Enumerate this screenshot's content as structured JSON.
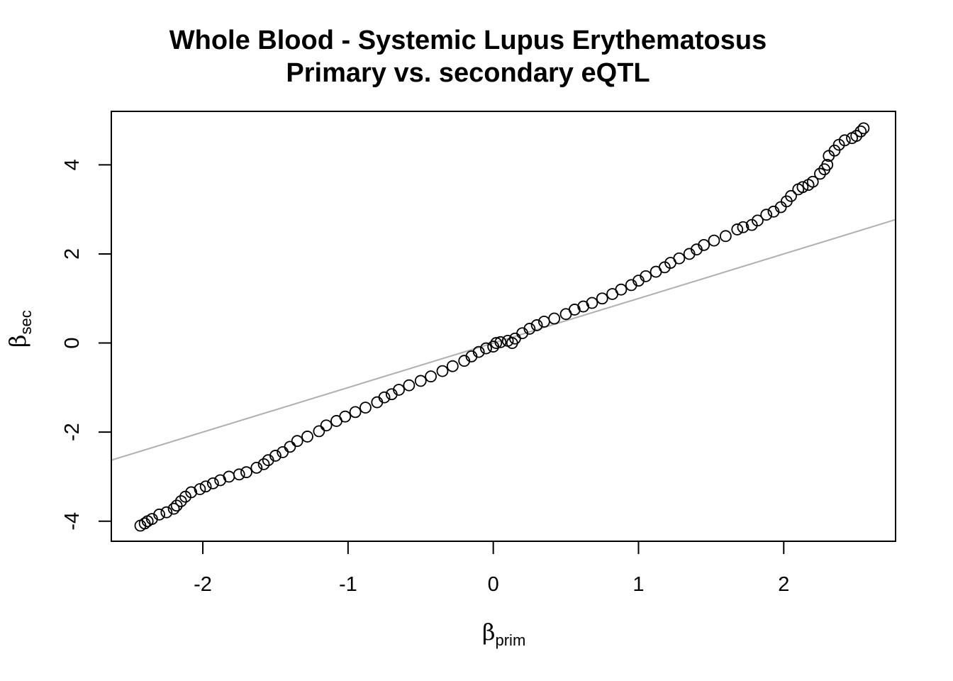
{
  "chart_data": {
    "type": "scatter",
    "title": "Whole Blood - Systemic Lupus Erythematosus",
    "subtitle": "Primary vs. secondary eQTL",
    "xlabel": {
      "symbol": "β",
      "subscript": "prim"
    },
    "ylabel": {
      "symbol": "β",
      "subscript": "sec"
    },
    "xlim": [
      -2.63,
      2.77
    ],
    "ylim": [
      -4.45,
      5.2
    ],
    "xticks": [
      "-2",
      "-1",
      "0",
      "1",
      "2"
    ],
    "yticks": [
      "-4",
      "-2",
      "0",
      "2",
      "4"
    ],
    "grid": false,
    "marker": "open-circle",
    "series": [
      {
        "points": [
          [
            -2.43,
            -4.1
          ],
          [
            -2.4,
            -4.05
          ],
          [
            -2.38,
            -4.0
          ],
          [
            -2.35,
            -3.95
          ],
          [
            -2.3,
            -3.85
          ],
          [
            -2.25,
            -3.8
          ],
          [
            -2.2,
            -3.72
          ],
          [
            -2.18,
            -3.65
          ],
          [
            -2.15,
            -3.55
          ],
          [
            -2.12,
            -3.45
          ],
          [
            -2.08,
            -3.35
          ],
          [
            -2.02,
            -3.28
          ],
          [
            -1.98,
            -3.22
          ],
          [
            -1.93,
            -3.15
          ],
          [
            -1.88,
            -3.08
          ],
          [
            -1.82,
            -3.0
          ],
          [
            -1.75,
            -2.95
          ],
          [
            -1.7,
            -2.9
          ],
          [
            -1.63,
            -2.8
          ],
          [
            -1.58,
            -2.72
          ],
          [
            -1.55,
            -2.63
          ],
          [
            -1.5,
            -2.53
          ],
          [
            -1.45,
            -2.45
          ],
          [
            -1.4,
            -2.33
          ],
          [
            -1.35,
            -2.2
          ],
          [
            -1.28,
            -2.1
          ],
          [
            -1.2,
            -1.98
          ],
          [
            -1.15,
            -1.85
          ],
          [
            -1.08,
            -1.75
          ],
          [
            -1.02,
            -1.65
          ],
          [
            -0.95,
            -1.55
          ],
          [
            -0.88,
            -1.45
          ],
          [
            -0.8,
            -1.33
          ],
          [
            -0.75,
            -1.22
          ],
          [
            -0.7,
            -1.15
          ],
          [
            -0.65,
            -1.05
          ],
          [
            -0.58,
            -0.95
          ],
          [
            -0.5,
            -0.85
          ],
          [
            -0.43,
            -0.75
          ],
          [
            -0.35,
            -0.63
          ],
          [
            -0.28,
            -0.52
          ],
          [
            -0.2,
            -0.4
          ],
          [
            -0.15,
            -0.3
          ],
          [
            -0.1,
            -0.2
          ],
          [
            -0.05,
            -0.12
          ],
          [
            0.0,
            -0.08
          ],
          [
            0.02,
            0.0
          ],
          [
            0.05,
            0.02
          ],
          [
            0.1,
            0.05
          ],
          [
            0.13,
            0.0
          ],
          [
            0.15,
            0.1
          ],
          [
            0.2,
            0.22
          ],
          [
            0.25,
            0.32
          ],
          [
            0.3,
            0.4
          ],
          [
            0.35,
            0.48
          ],
          [
            0.42,
            0.55
          ],
          [
            0.5,
            0.65
          ],
          [
            0.56,
            0.75
          ],
          [
            0.62,
            0.82
          ],
          [
            0.68,
            0.9
          ],
          [
            0.75,
            1.0
          ],
          [
            0.82,
            1.1
          ],
          [
            0.88,
            1.2
          ],
          [
            0.95,
            1.3
          ],
          [
            1.0,
            1.4
          ],
          [
            1.05,
            1.5
          ],
          [
            1.12,
            1.6
          ],
          [
            1.18,
            1.7
          ],
          [
            1.22,
            1.8
          ],
          [
            1.28,
            1.9
          ],
          [
            1.35,
            2.0
          ],
          [
            1.4,
            2.1
          ],
          [
            1.45,
            2.2
          ],
          [
            1.52,
            2.3
          ],
          [
            1.6,
            2.4
          ],
          [
            1.68,
            2.55
          ],
          [
            1.72,
            2.6
          ],
          [
            1.78,
            2.65
          ],
          [
            1.82,
            2.75
          ],
          [
            1.88,
            2.88
          ],
          [
            1.93,
            2.95
          ],
          [
            1.98,
            3.05
          ],
          [
            2.02,
            3.18
          ],
          [
            2.05,
            3.3
          ],
          [
            2.1,
            3.45
          ],
          [
            2.13,
            3.5
          ],
          [
            2.17,
            3.55
          ],
          [
            2.2,
            3.62
          ],
          [
            2.25,
            3.8
          ],
          [
            2.28,
            3.9
          ],
          [
            2.3,
            4.0
          ],
          [
            2.31,
            4.2
          ],
          [
            2.35,
            4.32
          ],
          [
            2.38,
            4.45
          ],
          [
            2.42,
            4.55
          ],
          [
            2.47,
            4.6
          ],
          [
            2.5,
            4.65
          ],
          [
            2.53,
            4.75
          ],
          [
            2.55,
            4.82
          ]
        ]
      }
    ],
    "reference_line": {
      "intercept": 0,
      "slope": 1,
      "color": "#b0b0b0"
    },
    "colors": {
      "points": "#000000",
      "axes": "#000000",
      "reference_line": "#b0b0b0"
    }
  }
}
